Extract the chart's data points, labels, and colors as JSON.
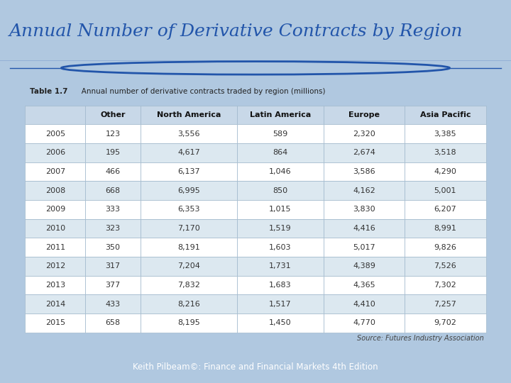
{
  "title": "Annual Number of Derivative Contracts by Region",
  "subtitle_bold": "Table 1.7",
  "subtitle_rest": "   Annual number of derivative contracts traded by region (millions)",
  "footer": "Keith Pilbeam©: Finance and Financial Markets 4th Edition",
  "source": "Source: Futures Industry Association",
  "columns": [
    "",
    "Other",
    "North America",
    "Latin America",
    "Europe",
    "Asia Pacific"
  ],
  "rows": [
    [
      "2005",
      "123",
      "3,556",
      "589",
      "2,320",
      "3,385"
    ],
    [
      "2006",
      "195",
      "4,617",
      "864",
      "2,674",
      "3,518"
    ],
    [
      "2007",
      "466",
      "6,137",
      "1,046",
      "3,586",
      "4,290"
    ],
    [
      "2008",
      "668",
      "6,995",
      "850",
      "4,162",
      "5,001"
    ],
    [
      "2009",
      "333",
      "6,353",
      "1,015",
      "3,830",
      "6,207"
    ],
    [
      "2010",
      "323",
      "7,170",
      "1,519",
      "4,416",
      "8,991"
    ],
    [
      "2011",
      "350",
      "8,191",
      "1,603",
      "5,017",
      "9,826"
    ],
    [
      "2012",
      "317",
      "7,204",
      "1,731",
      "4,389",
      "7,526"
    ],
    [
      "2013",
      "377",
      "7,832",
      "1,683",
      "4,365",
      "7,302"
    ],
    [
      "2014",
      "433",
      "8,216",
      "1,517",
      "4,410",
      "7,257"
    ],
    [
      "2015",
      "658",
      "8,195",
      "1,450",
      "4,770",
      "9,702"
    ]
  ],
  "bg_color": "#b0c8e0",
  "title_color": "#2255aa",
  "table_bg": "#f0f5fa",
  "header_bg": "#c8d8e8",
  "row_bg_odd": "#ffffff",
  "row_bg_even": "#dce8f0",
  "table_border_color": "#a0b8cc",
  "footer_bg": "#3377bb",
  "footer_text_color": "#ffffff",
  "circle_color": "#2255aa",
  "line_color": "#2255aa",
  "title_font_size": 18,
  "header_font_size": 8,
  "cell_font_size": 8,
  "subtitle_font_size": 7.5,
  "source_font_size": 7
}
